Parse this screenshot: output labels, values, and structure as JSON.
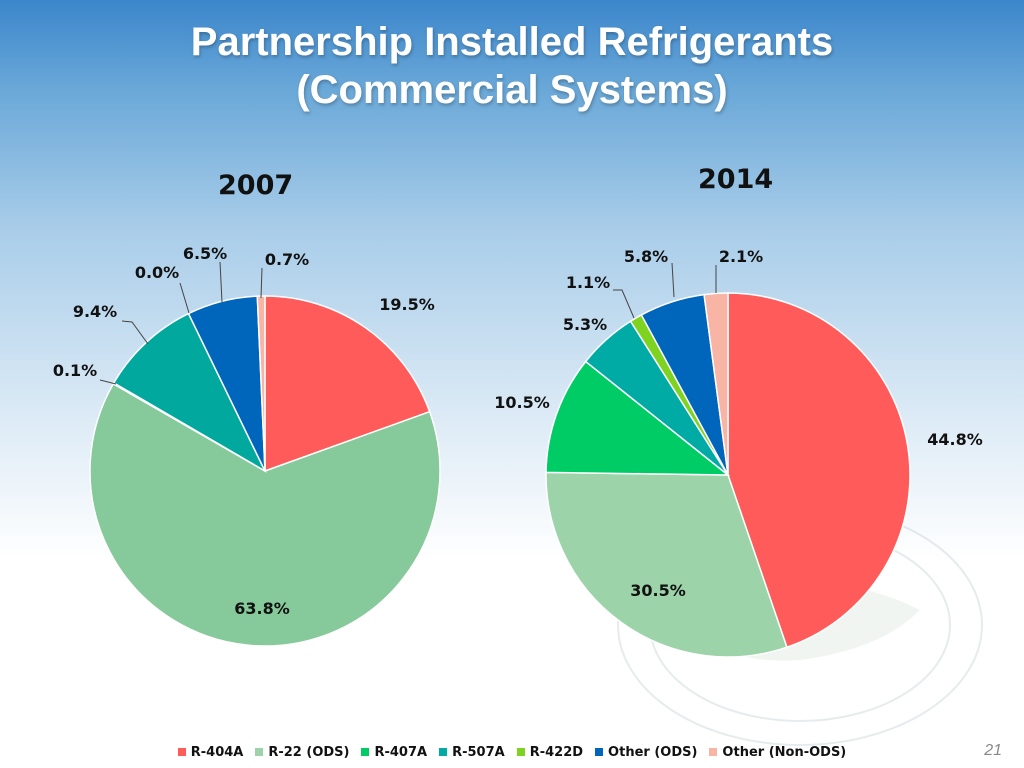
{
  "title": {
    "line1": "Partnership Installed Refrigerants",
    "line2": "(Commercial Systems)"
  },
  "colors": {
    "R-404A": "#ff5b5b",
    "R-22 (ODS)": "#9cd3a8",
    "R-22 (ODS) 2007": "#86c99a",
    "R-407A": "#00cc66",
    "R-507A": "#00aaa5",
    "R-422D": "#7ed321",
    "Other (ODS)": "#0066bb",
    "Other (Non-ODS)": "#f8b4a4"
  },
  "legend": [
    {
      "label": "R-404A",
      "color": "#ff5b5b"
    },
    {
      "label": "R-22 (ODS)",
      "color": "#9cd3a8"
    },
    {
      "label": "R-407A",
      "color": "#00cc66"
    },
    {
      "label": "R-507A",
      "color": "#00aaa5"
    },
    {
      "label": "R-422D",
      "color": "#7ed321"
    },
    {
      "label": "Other (ODS)",
      "color": "#0066bb"
    },
    {
      "label": "Other (Non-ODS)",
      "color": "#f8b4a4"
    }
  ],
  "page_number": "21",
  "chart_data": [
    {
      "type": "pie",
      "title": "2007",
      "labels": [
        "R-404A",
        "R-22 (ODS)",
        "R-407A",
        "R-507A",
        "R-422D",
        "Other (ODS)",
        "Other (Non-ODS)"
      ],
      "values": [
        19.5,
        63.8,
        0.1,
        9.4,
        0.0,
        6.5,
        0.7
      ],
      "data_labels": [
        "19.5%",
        "63.8%",
        "0.1%",
        "9.4%",
        "0.0%",
        "6.5%",
        "0.7%"
      ],
      "colors": [
        "#ff5b5b",
        "#86c99a",
        "#00cc66",
        "#00a89e",
        "#7ed321",
        "#0066bb",
        "#f8b4a4"
      ],
      "legend": "bottom"
    },
    {
      "type": "pie",
      "title": "2014",
      "labels": [
        "R-404A",
        "R-22 (ODS)",
        "R-407A",
        "R-507A",
        "R-422D",
        "Other (ODS)",
        "Other (Non-ODS)"
      ],
      "values": [
        44.8,
        30.5,
        10.5,
        5.3,
        1.1,
        5.8,
        2.1
      ],
      "data_labels": [
        "44.8%",
        "30.5%",
        "10.5%",
        "5.3%",
        "1.1%",
        "5.8%",
        "2.1%"
      ],
      "colors": [
        "#ff5b5b",
        "#9cd3a8",
        "#00cc66",
        "#00aaa5",
        "#7ed321",
        "#0066bb",
        "#f8b4a4"
      ],
      "legend": "bottom"
    }
  ]
}
